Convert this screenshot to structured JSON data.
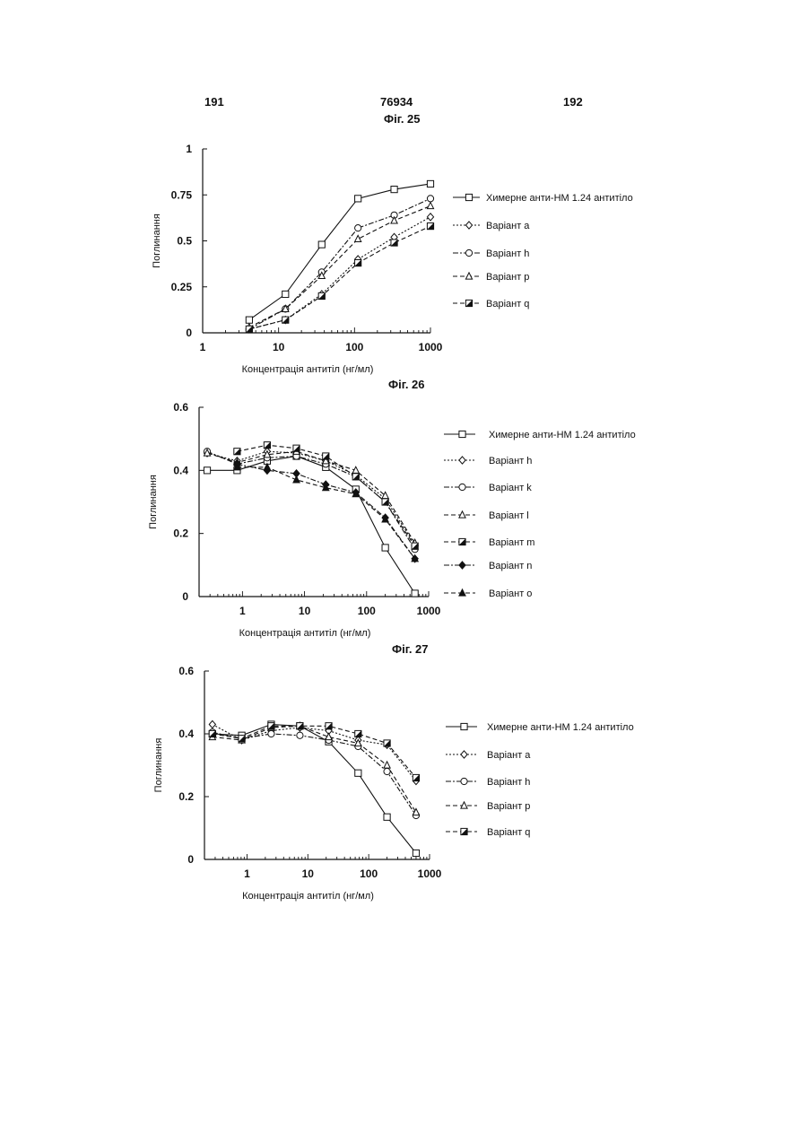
{
  "header": {
    "left_page": "191",
    "center_number": "76934",
    "right_page": "192"
  },
  "figures": [
    {
      "title": "Фіг. 25"
    },
    {
      "title": "Фіг. 26"
    },
    {
      "title": "Фіг. 27"
    }
  ],
  "chart_data": [
    {
      "type": "line",
      "title": "Фіг. 25",
      "xlabel": "Концентрація антитіл (нг/мл)",
      "ylabel": "Поглинання",
      "xscale": "log",
      "xlim": [
        1,
        1000
      ],
      "ylim": [
        0,
        1
      ],
      "xtick_labels": [
        "1",
        "10",
        "100",
        "1000"
      ],
      "xtick_values": [
        1,
        10,
        100,
        1000
      ],
      "ytick_labels": [
        "0",
        "0.25",
        "0.5",
        "0.75",
        "1"
      ],
      "ytick_values": [
        0,
        0.25,
        0.5,
        0.75,
        1
      ],
      "legend_position": "right",
      "series": [
        {
          "name": "Химерне анти-НМ 1.24 антитіло",
          "marker": "square",
          "dash": "solid",
          "x": [
            4.1,
            12.3,
            37,
            111,
            333,
            1000
          ],
          "y": [
            0.07,
            0.21,
            0.48,
            0.73,
            0.78,
            0.81
          ]
        },
        {
          "name": "Варіант a",
          "marker": "diamond",
          "dash": "dot",
          "x": [
            4.1,
            12.3,
            37,
            111,
            333,
            1000
          ],
          "y": [
            0.02,
            0.07,
            0.21,
            0.4,
            0.52,
            0.63
          ]
        },
        {
          "name": "Варіант h",
          "marker": "circle",
          "dash": "dashdot",
          "x": [
            4.1,
            12.3,
            37,
            111,
            333,
            1000
          ],
          "y": [
            0.02,
            0.13,
            0.33,
            0.57,
            0.64,
            0.73
          ]
        },
        {
          "name": "Варіант p",
          "marker": "triangle",
          "dash": "dash",
          "x": [
            4.1,
            12.3,
            37,
            111,
            333,
            1000
          ],
          "y": [
            0.03,
            0.13,
            0.31,
            0.51,
            0.61,
            0.69
          ]
        },
        {
          "name": "Варіант q",
          "marker": "halfsquare",
          "dash": "dash",
          "x": [
            4.1,
            12.3,
            37,
            111,
            333,
            1000
          ],
          "y": [
            0.02,
            0.07,
            0.2,
            0.38,
            0.49,
            0.58
          ]
        }
      ]
    },
    {
      "type": "line",
      "title": "Фіг. 26",
      "xlabel": "Концентрація антитіл (нг/мл)",
      "ylabel": "Поглинання",
      "xscale": "log",
      "xlim": [
        0.2,
        1000
      ],
      "ylim": [
        0,
        0.6
      ],
      "xtick_labels": [
        "1",
        "10",
        "100",
        "1000"
      ],
      "xtick_values": [
        1,
        10,
        100,
        1000
      ],
      "ytick_labels": [
        "0",
        "0.2",
        "0.4",
        "0.6"
      ],
      "ytick_values": [
        0,
        0.2,
        0.4,
        0.6
      ],
      "legend_position": "right",
      "series": [
        {
          "name": "Химерне анти-НМ 1.24 антитіло",
          "marker": "square",
          "dash": "solid",
          "x": [
            0.27,
            0.82,
            2.5,
            7.4,
            22,
            67,
            200,
            600
          ],
          "y": [
            0.4,
            0.4,
            0.43,
            0.445,
            0.41,
            0.34,
            0.155,
            0.01
          ]
        },
        {
          "name": "Варіант h",
          "marker": "diamond",
          "dash": "dot",
          "x": [
            0.27,
            0.82,
            2.5,
            7.4,
            22,
            67,
            200,
            600
          ],
          "y": [
            0.455,
            0.43,
            0.46,
            0.455,
            0.43,
            0.385,
            0.31,
            0.165
          ]
        },
        {
          "name": "Варіант k",
          "marker": "circle",
          "dash": "dashdot",
          "x": [
            0.27,
            0.82,
            2.5,
            7.4,
            22,
            67,
            200,
            600
          ],
          "y": [
            0.46,
            0.42,
            0.44,
            0.445,
            0.42,
            0.38,
            0.3,
            0.15
          ]
        },
        {
          "name": "Варіант l",
          "marker": "triangle",
          "dash": "dash",
          "x": [
            0.27,
            0.82,
            2.5,
            7.4,
            22,
            67,
            200,
            600
          ],
          "y": [
            0.455,
            0.425,
            0.45,
            0.46,
            0.43,
            0.4,
            0.32,
            0.17
          ]
        },
        {
          "name": "Варіант m",
          "marker": "halfsquare",
          "dash": "dash",
          "x": [
            0.82,
            2.5,
            7.4,
            22,
            67,
            200,
            600
          ],
          "y": [
            0.46,
            0.48,
            0.47,
            0.445,
            0.38,
            0.3,
            0.16
          ]
        },
        {
          "name": "Варіант n",
          "marker": "filleddiamond",
          "dash": "dashdot",
          "x": [
            0.82,
            2.5,
            7.4,
            22,
            67,
            200,
            600
          ],
          "y": [
            0.42,
            0.4,
            0.39,
            0.355,
            0.33,
            0.25,
            0.12
          ]
        },
        {
          "name": "Варіант o",
          "marker": "filledtriangle",
          "dash": "dash",
          "x": [
            0.82,
            2.5,
            7.4,
            22,
            67,
            200,
            600
          ],
          "y": [
            0.41,
            0.41,
            0.37,
            0.345,
            0.325,
            0.245,
            0.12
          ]
        }
      ]
    },
    {
      "type": "line",
      "title": "Фіг. 27",
      "xlabel": "Концентрація антитіл (нг/мл)",
      "ylabel": "Поглинання",
      "xscale": "log",
      "xlim": [
        0.2,
        1000
      ],
      "ylim": [
        0,
        0.6
      ],
      "xtick_labels": [
        "1",
        "10",
        "100",
        "1000"
      ],
      "xtick_values": [
        1,
        10,
        100,
        1000
      ],
      "ytick_labels": [
        "0",
        "0.2",
        "0.4",
        "0.6"
      ],
      "ytick_values": [
        0,
        0.2,
        0.4,
        0.6
      ],
      "legend_position": "right",
      "series": [
        {
          "name": "Химерне анти-НМ 1.24 антитіло",
          "marker": "square",
          "dash": "solid",
          "x": [
            0.27,
            0.82,
            2.5,
            7.4,
            22,
            67,
            200,
            600
          ],
          "y": [
            0.4,
            0.395,
            0.43,
            0.425,
            0.375,
            0.275,
            0.135,
            0.02
          ]
        },
        {
          "name": "Варіант a",
          "marker": "diamond",
          "dash": "dot",
          "x": [
            0.27,
            0.82,
            2.5,
            7.4,
            22,
            67,
            200,
            600
          ],
          "y": [
            0.43,
            0.38,
            0.41,
            0.42,
            0.41,
            0.38,
            0.365,
            0.25
          ]
        },
        {
          "name": "Варіант h",
          "marker": "circle",
          "dash": "dashdot",
          "x": [
            0.27,
            0.82,
            2.5,
            7.4,
            22,
            67,
            200,
            600
          ],
          "y": [
            0.405,
            0.385,
            0.4,
            0.395,
            0.38,
            0.36,
            0.28,
            0.14
          ]
        },
        {
          "name": "Варіант p",
          "marker": "triangle",
          "dash": "dash",
          "x": [
            0.27,
            0.82,
            2.5,
            7.4,
            22,
            67,
            200,
            600
          ],
          "y": [
            0.39,
            0.38,
            0.42,
            0.425,
            0.39,
            0.37,
            0.3,
            0.15
          ]
        },
        {
          "name": "Варіант q",
          "marker": "halfsquare",
          "dash": "dash",
          "x": [
            0.27,
            0.82,
            2.5,
            7.4,
            22,
            67,
            200,
            600
          ],
          "y": [
            0.4,
            0.385,
            0.425,
            0.425,
            0.425,
            0.4,
            0.37,
            0.26
          ]
        }
      ]
    }
  ]
}
